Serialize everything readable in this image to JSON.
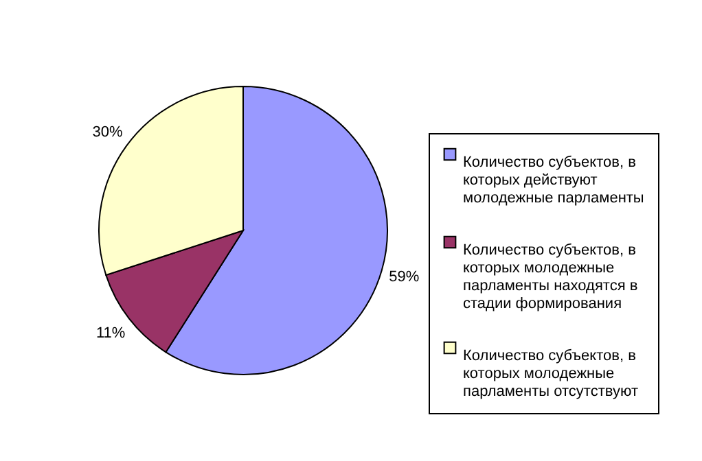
{
  "chart_data": {
    "type": "pie",
    "categories": [
      "Количество субъектов, в которых действуют молодежные парламенты",
      "Количество субъектов, в которых  молодежные парламенты находятся в стадии формирования",
      "Количество субъектов, в которых  молодежные парламенты отсутствуют"
    ],
    "values": [
      59,
      11,
      30
    ],
    "colors": [
      "#9999ff",
      "#993366",
      "#ffffcc"
    ],
    "value_labels": [
      "59%",
      "11%",
      "30%"
    ],
    "legend": "right"
  }
}
